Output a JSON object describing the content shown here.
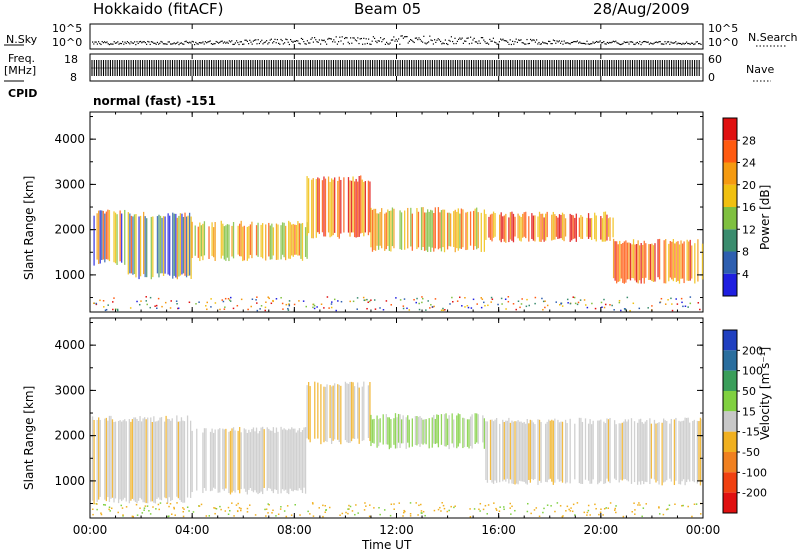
{
  "header": {
    "radar": "Hokkaido (fitACF)",
    "beam": "Beam 05",
    "date": "28/Aug/2009"
  },
  "aux_panels": {
    "nsky_label": "N.Sky",
    "nsky_top": "10^5",
    "nsky_bottom": "10^0",
    "nsearch_label": "N.Search",
    "nsearch_top": "10^5",
    "nsearch_bottom": "10^0",
    "freq_label": "Freq.",
    "freq_unit": "[MHz]",
    "freq_top": "18",
    "freq_bottom": "8",
    "nave_label": "Nave",
    "nave_top": "60",
    "nave_bottom": "0",
    "cpid_label": "CPID",
    "cpid_value": "normal (fast) -151"
  },
  "chart_data": [
    {
      "type": "heatmap",
      "name": "power",
      "ylabel": "Slant Range [km]",
      "ylim": [
        180,
        4600
      ],
      "y_ticks": [
        "1000",
        "2000",
        "3000",
        "4000"
      ],
      "x_ticks": [
        "00:00",
        "04:00",
        "08:00",
        "12:00",
        "16:00",
        "20:00",
        "00:00"
      ],
      "colorbar": {
        "label": "Power [dB]",
        "ticks": [
          "4",
          "8",
          "12",
          "16",
          "20",
          "24",
          "28"
        ],
        "colors": [
          "#1f1fe0",
          "#2e5fb0",
          "#3a8c6e",
          "#7fc040",
          "#f0c010",
          "#f59a10",
          "#ff5a10",
          "#e01010"
        ]
      },
      "regions": [
        {
          "t": [
            0.1,
            1.5
          ],
          "r": [
            1200,
            2450
          ],
          "level": "mixed"
        },
        {
          "t": [
            1.5,
            4.0
          ],
          "r": [
            900,
            2400
          ],
          "level": "mixed"
        },
        {
          "t": [
            4.0,
            8.5
          ],
          "r": [
            1300,
            2200
          ],
          "level": "mid"
        },
        {
          "t": [
            8.5,
            11.0
          ],
          "r": [
            1800,
            3200
          ],
          "level": "high"
        },
        {
          "t": [
            11.0,
            15.5
          ],
          "r": [
            1500,
            2500
          ],
          "level": "mid"
        },
        {
          "t": [
            15.5,
            20.5
          ],
          "r": [
            1700,
            2400
          ],
          "level": "high"
        },
        {
          "t": [
            20.5,
            24.0
          ],
          "r": [
            800,
            1800
          ],
          "level": "high"
        }
      ]
    },
    {
      "type": "heatmap",
      "name": "velocity",
      "ylabel": "Slant Range [km]",
      "ylim": [
        180,
        4600
      ],
      "y_ticks": [
        "1000",
        "2000",
        "3000",
        "4000"
      ],
      "x_ticks": [
        "00:00",
        "04:00",
        "08:00",
        "12:00",
        "16:00",
        "20:00",
        "00:00"
      ],
      "xlabel": "Time UT",
      "colorbar": {
        "label": "Velocity [m s⁻¹]",
        "ticks": [
          "200",
          "100",
          "50",
          "15",
          "-15",
          "-50",
          "-100",
          "-200"
        ],
        "colors": [
          "#2040c0",
          "#2a6e9e",
          "#3a9e5a",
          "#80d040",
          "#c8c8c8",
          "#f0b020",
          "#f08020",
          "#f04010",
          "#e01010"
        ]
      },
      "regions": [
        {
          "t": [
            0.1,
            4.0
          ],
          "r": [
            500,
            2450
          ],
          "level": "low"
        },
        {
          "t": [
            4.0,
            8.5
          ],
          "r": [
            700,
            2200
          ],
          "level": "low"
        },
        {
          "t": [
            8.5,
            11.0
          ],
          "r": [
            1800,
            3200
          ],
          "level": "mixed"
        },
        {
          "t": [
            11.0,
            15.5
          ],
          "r": [
            1700,
            2500
          ],
          "level": "green"
        },
        {
          "t": [
            15.5,
            24.0
          ],
          "r": [
            900,
            2400
          ],
          "level": "low"
        }
      ]
    }
  ]
}
